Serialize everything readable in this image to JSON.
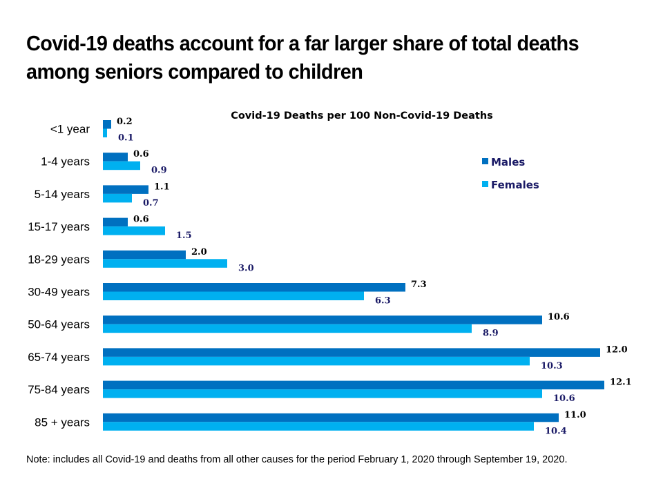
{
  "header": {
    "title": "Covid-19 deaths account for a far larger share of total deaths among seniors compared to children"
  },
  "footer": {
    "note": "Note: includes all Covid-19 and deaths from all other causes for the period February 1, 2020 through September 19, 2020."
  },
  "chart_data": {
    "type": "bar",
    "orientation": "horizontal",
    "title": "Covid-19 Deaths per 100 Non-Covid-19 Deaths",
    "xlabel": "",
    "ylabel": "",
    "xlim": [
      0,
      13
    ],
    "grid": false,
    "legend_position": "right",
    "categories": [
      "<1 year",
      "1-4 years",
      "5-14 years",
      "15-17 years",
      "18-29 years",
      "30-49 years",
      "50-64 years",
      "65-74 years",
      "75-84 years",
      "85 + years"
    ],
    "series": [
      {
        "name": "Males",
        "color": "#0070c0",
        "label_color": "#000000",
        "values": [
          0.2,
          0.6,
          1.1,
          0.6,
          2.0,
          7.3,
          10.6,
          12.0,
          12.1,
          11.0
        ],
        "labels": [
          "0.2",
          "0.6",
          "1.1",
          "0.6",
          "2.0",
          "7.3",
          "10.6",
          "12.0",
          "12.1",
          "11.0"
        ]
      },
      {
        "name": "Females",
        "color": "#00b0f0",
        "label_color": "#1a1a66",
        "values": [
          0.1,
          0.9,
          0.7,
          1.5,
          3.0,
          6.3,
          8.9,
          10.3,
          10.6,
          10.4
        ],
        "labels": [
          "0.1",
          "0.9",
          "0.7",
          "1.5",
          "3.0",
          "6.3",
          "8.9",
          "10.3",
          "10.6",
          "10.4"
        ]
      }
    ]
  }
}
